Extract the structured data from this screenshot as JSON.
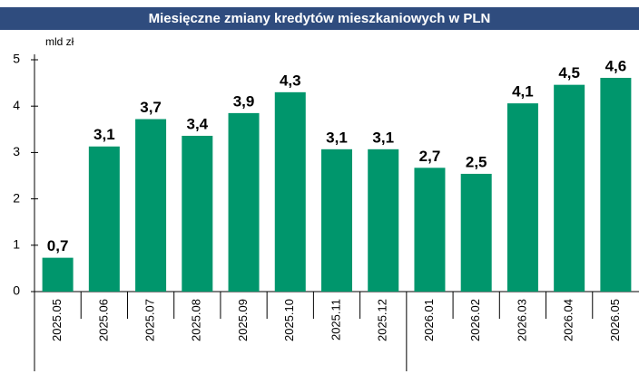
{
  "chart_data": {
    "type": "bar",
    "title": "Miesięczne zmiany kredytów mieszkaniowych w PLN",
    "y_label": "mld zł",
    "categories": [
      "2025.05",
      "2025.06",
      "2025.07",
      "2025.08",
      "2025.09",
      "2025.10",
      "2025.11",
      "2025.12",
      "2026.01",
      "2026.02",
      "2026.03",
      "2026.04",
      "2026.05"
    ],
    "values": [
      0.73,
      3.13,
      3.72,
      3.36,
      3.85,
      4.3,
      3.07,
      3.07,
      2.67,
      2.54,
      4.06,
      4.46,
      4.61
    ],
    "value_labels": [
      "0,7",
      "3,1",
      "3,7",
      "3,4",
      "3,9",
      "4,3",
      "3,1",
      "3,1",
      "2,7",
      "2,5",
      "4,1",
      "4,5",
      "4,6"
    ],
    "color": "#00966c",
    "ylim": [
      0,
      5
    ],
    "yticks": [
      0,
      1,
      2,
      3,
      4,
      5
    ],
    "grid": false
  }
}
